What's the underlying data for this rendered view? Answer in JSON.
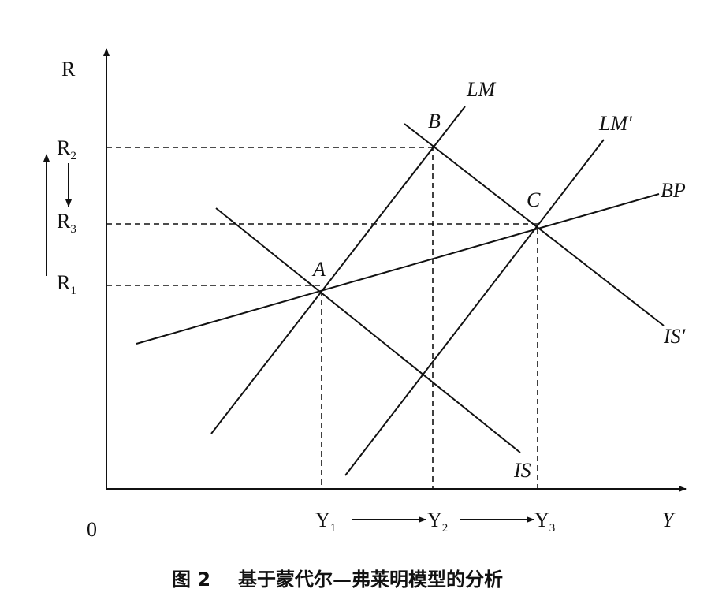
{
  "axes": {
    "y_label": "R",
    "x_label": "Y",
    "origin": "0"
  },
  "rates": [
    {
      "base": "R",
      "sub": "2"
    },
    {
      "base": "R",
      "sub": "3"
    },
    {
      "base": "R",
      "sub": "1"
    }
  ],
  "outputs": [
    {
      "base": "Y",
      "sub": "1"
    },
    {
      "base": "Y",
      "sub": "2"
    },
    {
      "base": "Y",
      "sub": "3"
    }
  ],
  "curves": [
    "LM",
    "LM′",
    "BP",
    "IS",
    "IS′"
  ],
  "points": [
    "A",
    "B",
    "C"
  ],
  "caption": {
    "figure": "图 2",
    "text": "基于蒙代尔—弗莱明模型的分析"
  }
}
